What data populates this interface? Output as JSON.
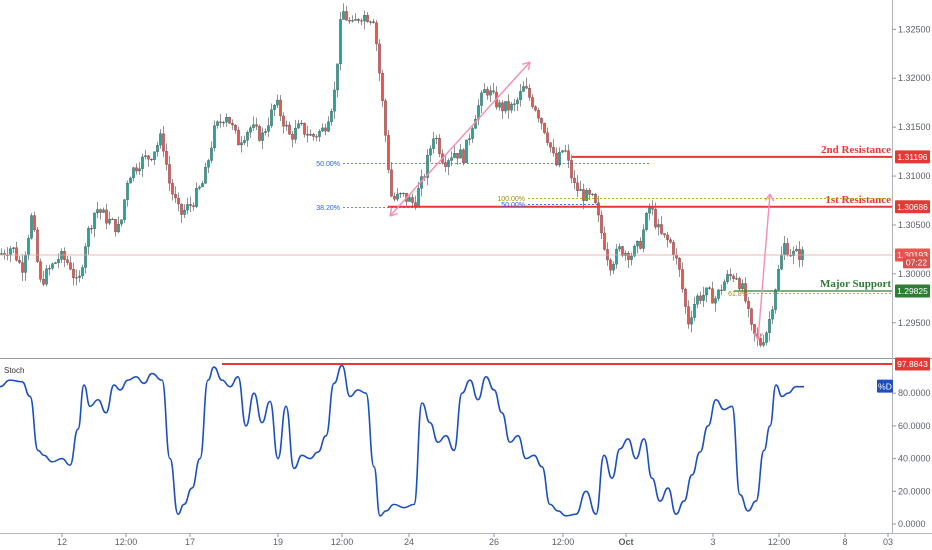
{
  "chart_data": [
    {
      "type": "candlestick",
      "panel": "price",
      "series_color_up": "#26a69a",
      "series_color_down": "#ef5350",
      "ylim": [
        1.2915,
        1.328
      ],
      "y_ticks": [
        "1.32500",
        "1.32000",
        "1.31500",
        "1.31000",
        "1.30500",
        "1.30000",
        "1.29500"
      ],
      "x_ticks": [
        "12",
        "12:00",
        "17",
        "19",
        "12:00",
        "24",
        "26",
        "12:00",
        "Oct",
        "3",
        "12:00",
        "8",
        "03"
      ],
      "path": [
        [
          0,
          1.302
        ],
        [
          12,
          1.3028
        ],
        [
          22,
          1.3005
        ],
        [
          32,
          1.306
        ],
        [
          40,
          1.299
        ],
        [
          50,
          1.3005
        ],
        [
          60,
          1.3018
        ],
        [
          70,
          1.301
        ],
        [
          78,
          1.2985
        ],
        [
          86,
          1.3035
        ],
        [
          96,
          1.3068
        ],
        [
          108,
          1.3055
        ],
        [
          120,
          1.3045
        ],
        [
          128,
          1.31
        ],
        [
          140,
          1.3115
        ],
        [
          150,
          1.312
        ],
        [
          162,
          1.314
        ],
        [
          170,
          1.309
        ],
        [
          180,
          1.306
        ],
        [
          192,
          1.3072
        ],
        [
          204,
          1.3095
        ],
        [
          214,
          1.3145
        ],
        [
          226,
          1.3165
        ],
        [
          238,
          1.3135
        ],
        [
          250,
          1.315
        ],
        [
          262,
          1.314
        ],
        [
          276,
          1.3175
        ],
        [
          290,
          1.314
        ],
        [
          300,
          1.315
        ],
        [
          312,
          1.314
        ],
        [
          324,
          1.3148
        ],
        [
          334,
          1.318
        ],
        [
          342,
          1.327
        ],
        [
          352,
          1.3252
        ],
        [
          360,
          1.3265
        ],
        [
          374,
          1.3262
        ],
        [
          382,
          1.318
        ],
        [
          388,
          1.3115
        ],
        [
          392,
          1.3075
        ],
        [
          402,
          1.308
        ],
        [
          414,
          1.3072
        ],
        [
          424,
          1.31
        ],
        [
          434,
          1.3145
        ],
        [
          444,
          1.3115
        ],
        [
          454,
          1.3125
        ],
        [
          464,
          1.312
        ],
        [
          474,
          1.316
        ],
        [
          486,
          1.319
        ],
        [
          500,
          1.317
        ],
        [
          514,
          1.317
        ],
        [
          524,
          1.319
        ],
        [
          536,
          1.317
        ],
        [
          546,
          1.3145
        ],
        [
          556,
          1.311
        ],
        [
          564,
          1.313
        ],
        [
          574,
          1.309
        ],
        [
          584,
          1.308
        ],
        [
          594,
          1.3075
        ],
        [
          602,
          1.304
        ],
        [
          610,
          1.301
        ],
        [
          620,
          1.3025
        ],
        [
          632,
          1.302
        ],
        [
          640,
          1.303
        ],
        [
          650,
          1.307
        ],
        [
          660,
          1.304
        ],
        [
          672,
          1.303
        ],
        [
          680,
          1.3
        ],
        [
          688,
          1.295
        ],
        [
          696,
          1.2975
        ],
        [
          706,
          1.298
        ],
        [
          716,
          1.2975
        ],
        [
          726,
          1.2995
        ],
        [
          736,
          1.3
        ],
        [
          744,
          1.298
        ],
        [
          752,
          1.294
        ],
        [
          760,
          1.2928
        ],
        [
          768,
          1.2945
        ],
        [
          776,
          1.299
        ],
        [
          784,
          1.303
        ],
        [
          792,
          1.302
        ],
        [
          804,
          1.302
        ]
      ],
      "levels": [
        {
          "name": "2nd Resistance",
          "value": 1.31196,
          "label": "1.31196",
          "color": "#e53935"
        },
        {
          "name": "1st Resistance",
          "value": 1.30686,
          "label": "1.30686",
          "color": "#e53935"
        },
        {
          "name": "Major Support",
          "value": 1.29825,
          "label": "1.29825",
          "color": "#2e7d32"
        }
      ],
      "current_price": {
        "label": "1.30193",
        "value": 1.30193,
        "color": "#ef5350"
      },
      "countdown": {
        "label": "07:22",
        "value": 1.30118,
        "color": "#d8514e"
      },
      "fib_levels": [
        {
          "label": "50.00%",
          "value": 1.3113
        },
        {
          "label": "38.20%",
          "value": 1.3068
        },
        {
          "label": "100.00%",
          "value": 1.3077
        },
        {
          "label": "50.00%",
          "value": 1.3071
        }
      ],
      "support_fib": {
        "label": "61.8%",
        "value": 1.298
      }
    },
    {
      "type": "line",
      "panel": "indicator",
      "title": "Stoch",
      "series": [
        {
          "name": "%D",
          "color": "#1e4fc0"
        }
      ],
      "ylim": [
        0,
        100
      ],
      "y_ticks": [
        "80.0000",
        "60.0000",
        "40.0000",
        "20.0000",
        "0.0000"
      ],
      "level": {
        "value": 97.8843,
        "label": "97.8843",
        "color": "#e53935"
      },
      "x": [
        0,
        10,
        22,
        30,
        38,
        44,
        52,
        62,
        70,
        78,
        84,
        90,
        98,
        106,
        114,
        120,
        128,
        136,
        144,
        152,
        162,
        170,
        178,
        184,
        192,
        200,
        208,
        214,
        222,
        230,
        238,
        246,
        254,
        262,
        270,
        278,
        286,
        294,
        302,
        310,
        318,
        326,
        334,
        342,
        350,
        358,
        366,
        374,
        380,
        386,
        394,
        404,
        414,
        422,
        430,
        438,
        446,
        454,
        462,
        470,
        478,
        486,
        494,
        502,
        510,
        518,
        526,
        534,
        542,
        550,
        558,
        566,
        576,
        586,
        596,
        604,
        612,
        620,
        628,
        636,
        644,
        652,
        660,
        668,
        676,
        684,
        692,
        700,
        708,
        716,
        724,
        732,
        740,
        748,
        756,
        764,
        770,
        776,
        782,
        788,
        796,
        804
      ],
      "values": [
        84,
        88,
        87,
        78,
        45,
        42,
        38,
        40,
        36,
        58,
        85,
        72,
        76,
        68,
        85,
        82,
        88,
        90,
        86,
        92,
        88,
        40,
        6,
        12,
        22,
        40,
        88,
        96,
        88,
        84,
        90,
        60,
        80,
        62,
        75,
        40,
        72,
        34,
        42,
        40,
        44,
        54,
        86,
        97,
        78,
        82,
        80,
        35,
        5,
        8,
        12,
        10,
        12,
        74,
        62,
        50,
        54,
        45,
        80,
        88,
        76,
        90,
        82,
        68,
        50,
        54,
        40,
        42,
        35,
        12,
        8,
        5,
        6,
        20,
        6,
        42,
        28,
        46,
        52,
        40,
        52,
        28,
        14,
        22,
        6,
        14,
        30,
        44,
        60,
        76,
        70,
        72,
        18,
        8,
        14,
        45,
        60,
        85,
        78,
        80,
        84,
        84
      ]
    }
  ]
}
